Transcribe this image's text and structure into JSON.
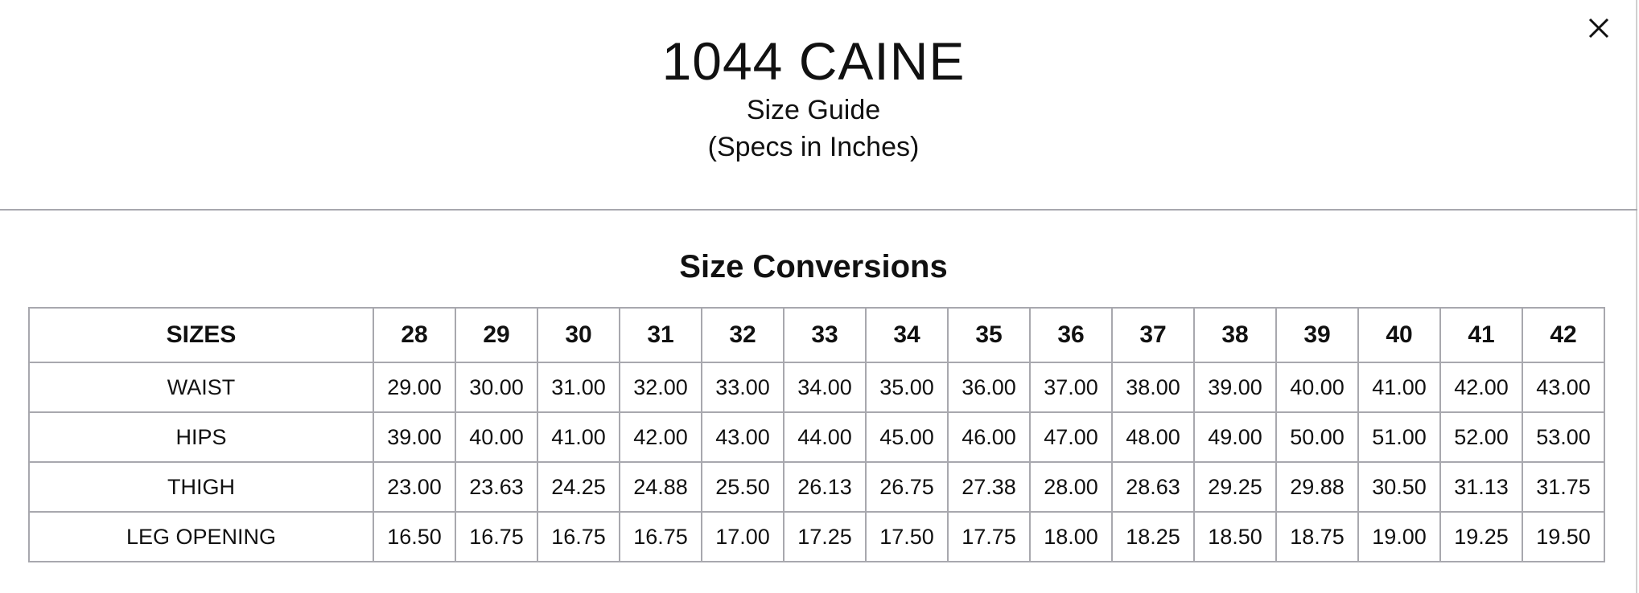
{
  "header": {
    "title": "1044 CAINE",
    "subtitle": "Size Guide",
    "note": "(Specs in Inches)",
    "close_icon": "close-icon"
  },
  "section_title": "Size Conversions",
  "table": {
    "header": [
      "SIZES",
      "28",
      "29",
      "30",
      "31",
      "32",
      "33",
      "34",
      "35",
      "36",
      "37",
      "38",
      "39",
      "40",
      "41",
      "42"
    ],
    "rows": [
      [
        "WAIST",
        "29.00",
        "30.00",
        "31.00",
        "32.00",
        "33.00",
        "34.00",
        "35.00",
        "36.00",
        "37.00",
        "38.00",
        "39.00",
        "40.00",
        "41.00",
        "42.00",
        "43.00"
      ],
      [
        "HIPS",
        "39.00",
        "40.00",
        "41.00",
        "42.00",
        "43.00",
        "44.00",
        "45.00",
        "46.00",
        "47.00",
        "48.00",
        "49.00",
        "50.00",
        "51.00",
        "52.00",
        "53.00"
      ],
      [
        "THIGH",
        "23.00",
        "23.63",
        "24.25",
        "24.88",
        "25.50",
        "26.13",
        "26.75",
        "27.38",
        "28.00",
        "28.63",
        "29.25",
        "29.88",
        "30.50",
        "31.13",
        "31.75"
      ],
      [
        "LEG OPENING",
        "16.50",
        "16.75",
        "16.75",
        "16.75",
        "17.00",
        "17.25",
        "17.50",
        "17.75",
        "18.00",
        "18.25",
        "18.50",
        "18.75",
        "19.00",
        "19.25",
        "19.50"
      ]
    ]
  },
  "colors": {
    "border": "#a8a8ae",
    "text": "#111111"
  }
}
